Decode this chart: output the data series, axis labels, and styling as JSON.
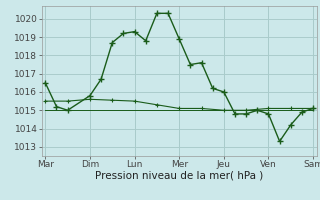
{
  "title": "",
  "xlabel": "Pression niveau de la mer( hPa )",
  "background_color": "#cce8ea",
  "grid_color": "#aacccc",
  "line_color": "#1a5c1a",
  "ylim": [
    1012.5,
    1020.7
  ],
  "xlim": [
    -2,
    146
  ],
  "days": [
    "Mar",
    "Dim",
    "Lun",
    "Mer",
    "Jeu",
    "Ven",
    "Sam"
  ],
  "day_positions": [
    0,
    24,
    48,
    72,
    96,
    120,
    144
  ],
  "series1_x": [
    0,
    6,
    12,
    24,
    30,
    36,
    42,
    48,
    54,
    60,
    66,
    72,
    78,
    84,
    90,
    96,
    102,
    108,
    114,
    120,
    126,
    132,
    138,
    144
  ],
  "series1_y": [
    1016.5,
    1015.2,
    1015.0,
    1015.8,
    1016.7,
    1018.7,
    1019.2,
    1019.3,
    1018.8,
    1020.3,
    1020.3,
    1018.9,
    1017.5,
    1017.6,
    1016.2,
    1016.0,
    1014.8,
    1014.8,
    1015.0,
    1014.8,
    1013.3,
    1014.2,
    1014.9,
    1015.1
  ],
  "series2_x": [
    0,
    12,
    24,
    36,
    48,
    60,
    72,
    84,
    96,
    108,
    120,
    132,
    144
  ],
  "series2_y": [
    1015.5,
    1015.5,
    1015.6,
    1015.55,
    1015.5,
    1015.3,
    1015.1,
    1015.1,
    1015.0,
    1015.0,
    1015.1,
    1015.1,
    1015.1
  ],
  "series3_x": [
    0,
    12,
    24,
    48,
    72,
    96,
    120,
    144
  ],
  "series3_y": [
    1015.0,
    1015.0,
    1015.0,
    1015.0,
    1015.0,
    1015.0,
    1015.0,
    1015.0
  ],
  "yticks": [
    1013,
    1014,
    1015,
    1016,
    1017,
    1018,
    1019,
    1020
  ]
}
